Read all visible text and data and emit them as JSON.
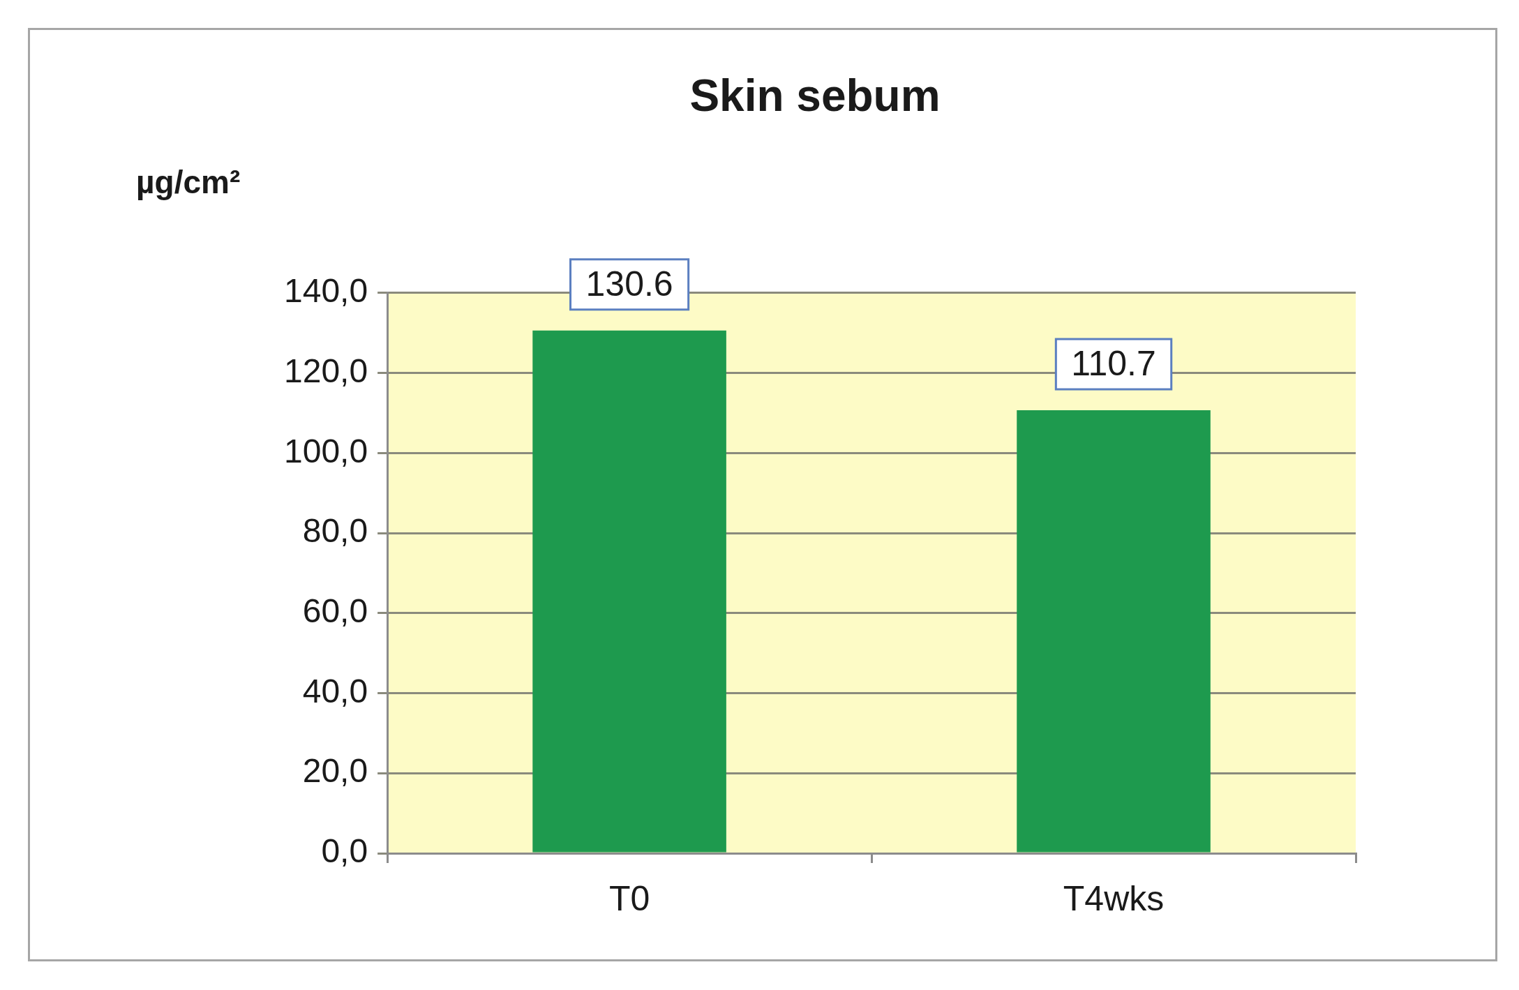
{
  "chart_data": {
    "type": "bar",
    "title": "Skin sebum",
    "ylabel": "µg/cm²",
    "categories": [
      "T0",
      "T4wks"
    ],
    "values": [
      130.6,
      110.7
    ],
    "color": "#1e9a4e",
    "ylim": [
      0,
      140
    ],
    "yticks": [
      {
        "value": 0,
        "label": "0,0"
      },
      {
        "value": 20,
        "label": "20,0"
      },
      {
        "value": 40,
        "label": "40,0"
      },
      {
        "value": 60,
        "label": "60,0"
      },
      {
        "value": 80,
        "label": "80,0"
      },
      {
        "value": 100,
        "label": "100,0"
      },
      {
        "value": 120,
        "label": "120,0"
      },
      {
        "value": 140,
        "label": "140,0"
      }
    ],
    "grid": "y",
    "data_labels": true
  }
}
